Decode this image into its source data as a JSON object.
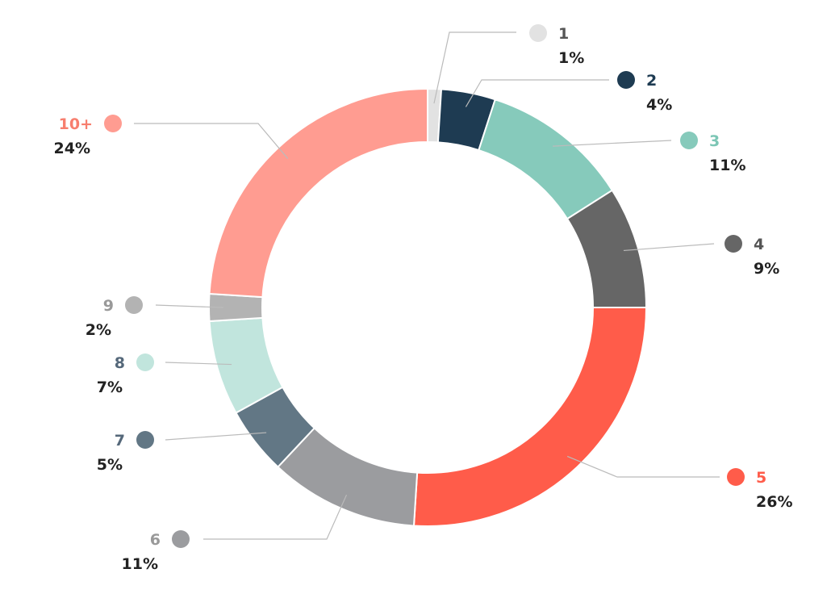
{
  "chart_data": {
    "type": "pie",
    "variant": "donut",
    "title": "",
    "legend": "none",
    "slices": [
      {
        "label": "1",
        "value": 1,
        "percent_label": "1%",
        "color": "#e2e2e2",
        "label_color": "#555555"
      },
      {
        "label": "2",
        "value": 4,
        "percent_label": "4%",
        "color": "#1e3b52",
        "label_color": "#1e3b52"
      },
      {
        "label": "3",
        "value": 11,
        "percent_label": "11%",
        "color": "#86cabb",
        "label_color": "#7cc6b5"
      },
      {
        "label": "4",
        "value": 9,
        "percent_label": "9%",
        "color": "#666666",
        "label_color": "#555555"
      },
      {
        "label": "5",
        "value": 26,
        "percent_label": "26%",
        "color": "#ff5c4a",
        "label_color": "#ff5c4a"
      },
      {
        "label": "6",
        "value": 11,
        "percent_label": "11%",
        "color": "#9b9c9f",
        "label_color": "#999999"
      },
      {
        "label": "7",
        "value": 5,
        "percent_label": "5%",
        "color": "#627785",
        "label_color": "#55687a"
      },
      {
        "label": "8",
        "value": 7,
        "percent_label": "7%",
        "color": "#c1e5dd",
        "label_color": "#55687a"
      },
      {
        "label": "9",
        "value": 2,
        "percent_label": "2%",
        "color": "#b3b3b3",
        "label_color": "#999999"
      },
      {
        "label": "10+",
        "value": 24,
        "percent_label": "24%",
        "color": "#ff9c91",
        "label_color": "#f77e6e"
      }
    ]
  }
}
